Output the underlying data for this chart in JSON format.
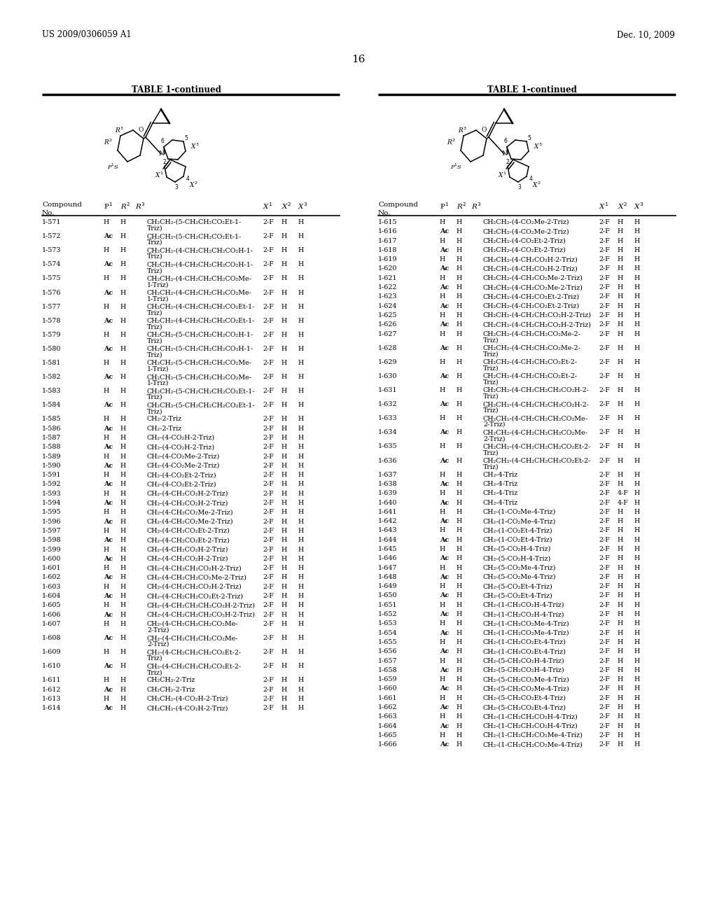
{
  "header_left": "US 2009/0306059 A1",
  "header_right": "Dec. 10, 2009",
  "page_number": "16",
  "table_title": "TABLE 1-continued",
  "left_rows": [
    [
      "1-571",
      "H",
      "H",
      "CH2CH2-(5-CH2CH2CO2Et-1-\nTriz)",
      "2-F",
      "H",
      "H"
    ],
    [
      "1-572",
      "Ac",
      "H",
      "CH2CH2-(5-CH2CH2CO2Et-1-\nTriz)",
      "2-F",
      "H",
      "H"
    ],
    [
      "1-573",
      "H",
      "H",
      "CH2CH2-(4-CH2CH2CH2CO2H-1-\nTriz)",
      "2-F",
      "H",
      "H"
    ],
    [
      "1-574",
      "Ac",
      "H",
      "CH2CH2-(4-CH2CH2CH2CO2H-1-\nTriz)",
      "2-F",
      "H",
      "H"
    ],
    [
      "1-575",
      "H",
      "H",
      "CH2CH2-(4-CH2CH2CH2CO2Me-\n1-Triz)",
      "2-F",
      "H",
      "H"
    ],
    [
      "1-576",
      "Ac",
      "H",
      "CH2CH2-(4-CH2CH2CH2CO2Me-\n1-Triz)",
      "2-F",
      "H",
      "H"
    ],
    [
      "1-577",
      "H",
      "H",
      "CH2CH2-(4-CH2CH2CH2CO2Et-1-\nTriz)",
      "2-F",
      "H",
      "H"
    ],
    [
      "1-578",
      "Ac",
      "H",
      "CH2CH2-(4-CH2CH2CH2CO2Et-1-\nTriz)",
      "2-F",
      "H",
      "H"
    ],
    [
      "1-579",
      "H",
      "H",
      "CH2CH2-(5-CH2CH2CH2CO2H-1-\nTriz)",
      "2-F",
      "H",
      "H"
    ],
    [
      "1-580",
      "Ac",
      "H",
      "CH2CH2-(5-CH2CH2CH2CO2H-1-\nTriz)",
      "2-F",
      "H",
      "H"
    ],
    [
      "1-581",
      "H",
      "H",
      "CH2CH2-(5-CH2CH2CH2CO2Me-\n1-Triz)",
      "2-F",
      "H",
      "H"
    ],
    [
      "1-582",
      "Ac",
      "H",
      "CH2CH2-(5-CH2CH2CH2CO2Me-\n1-Triz)",
      "2-F",
      "H",
      "H"
    ],
    [
      "1-583",
      "H",
      "H",
      "CH2CH2-(5-CH2CH2CH2CO2Et-1-\nTriz)",
      "2-F",
      "H",
      "H"
    ],
    [
      "1-584",
      "Ac",
      "H",
      "CH2CH2-(5-CH2CH2CH2CO2Et-1-\nTriz)",
      "2-F",
      "H",
      "H"
    ],
    [
      "1-585",
      "H",
      "H",
      "CH2-2-Triz",
      "2-F",
      "H",
      "H"
    ],
    [
      "1-586",
      "Ac",
      "H",
      "CH2-2-Triz",
      "2-F",
      "H",
      "H"
    ],
    [
      "1-587",
      "H",
      "H",
      "CH2-(4-CO2H-2-Triz)",
      "2-F",
      "H",
      "H"
    ],
    [
      "1-588",
      "Ac",
      "H",
      "CH2-(4-CO2H-2-Triz)",
      "2-F",
      "H",
      "H"
    ],
    [
      "1-589",
      "H",
      "H",
      "CH2-(4-CO2Me-2-Triz)",
      "2-F",
      "H",
      "H"
    ],
    [
      "1-590",
      "Ac",
      "H",
      "CH2-(4-CO2Me-2-Triz)",
      "2-F",
      "H",
      "H"
    ],
    [
      "1-591",
      "H",
      "H",
      "CH2-(4-CO2Et-2-Triz)",
      "2-F",
      "H",
      "H"
    ],
    [
      "1-592",
      "Ac",
      "H",
      "CH2-(4-CO2Et-2-Triz)",
      "2-F",
      "H",
      "H"
    ],
    [
      "1-593",
      "H",
      "H",
      "CH2-(4-CH2CO2H-2-Triz)",
      "2-F",
      "H",
      "H"
    ],
    [
      "1-594",
      "Ac",
      "H",
      "CH2-(4-CH2CO2H-2-Triz)",
      "2-F",
      "H",
      "H"
    ],
    [
      "1-595",
      "H",
      "H",
      "CH2-(4-CH2CO2Me-2-Triz)",
      "2-F",
      "H",
      "H"
    ],
    [
      "1-596",
      "Ac",
      "H",
      "CH2-(4-CH2CO2Me-2-Triz)",
      "2-F",
      "H",
      "H"
    ],
    [
      "1-597",
      "H",
      "H",
      "CH2-(4-CH2CO2Et-2-Triz)",
      "2-F",
      "H",
      "H"
    ],
    [
      "1-598",
      "Ac",
      "H",
      "CH2-(4-CH2CO2Et-2-Triz)",
      "2-F",
      "H",
      "H"
    ],
    [
      "1-599",
      "H",
      "H",
      "CH2-(4-CH2CO2H-2-Triz)",
      "2-F",
      "H",
      "H"
    ],
    [
      "1-600",
      "Ac",
      "H",
      "CH2-(4-CH2CO2H-2-Triz)",
      "2-F",
      "H",
      "H"
    ],
    [
      "1-601",
      "H",
      "H",
      "CH2-(4-CH2CH2CO2H-2-Triz)",
      "2-F",
      "H",
      "H"
    ],
    [
      "1-602",
      "Ac",
      "H",
      "CH2-(4-CH2CH2CO2Me-2-Triz)",
      "2-F",
      "H",
      "H"
    ],
    [
      "1-603",
      "H",
      "H",
      "CH2-(4-CH2CH2CO2H-2-Triz)",
      "2-F",
      "H",
      "H"
    ],
    [
      "1-604",
      "Ac",
      "H",
      "CH2-(4-CH2CH2CO2Et-2-Triz)",
      "2-F",
      "H",
      "H"
    ],
    [
      "1-605",
      "H",
      "H",
      "CH2-(4-CH2CH2CH2CO2H-2-Triz)",
      "2-F",
      "H",
      "H"
    ],
    [
      "1-606",
      "Ac",
      "H",
      "CH2-(4-CH2CH2CH2CO2H-2-Triz)",
      "2-F",
      "H",
      "H"
    ],
    [
      "1-607",
      "H",
      "H",
      "CH2-(4-CH2CH2CH2CO2Me-\n2-Triz)",
      "2-F",
      "H",
      "H"
    ],
    [
      "1-608",
      "Ac",
      "H",
      "CH2-(4-CH2CH2CH2CO2Me-\n2-Triz)",
      "2-F",
      "H",
      "H"
    ],
    [
      "1-609",
      "H",
      "H",
      "CH2-(4-CH2CH2CH2CO2Et-2-\nTriz)",
      "2-F",
      "H",
      "H"
    ],
    [
      "1-610",
      "Ac",
      "H",
      "CH2-(4-CH2CH2CH2CO2Et-2-\nTriz)",
      "2-F",
      "H",
      "H"
    ],
    [
      "1-611",
      "H",
      "H",
      "CH2CH2-2-Triz",
      "2-F",
      "H",
      "H"
    ],
    [
      "1-612",
      "Ac",
      "H",
      "CH2CH2-2-Triz",
      "2-F",
      "H",
      "H"
    ],
    [
      "1-613",
      "H",
      "H",
      "CH2CH2-(4-CO2H-2-Triz)",
      "2-F",
      "H",
      "H"
    ],
    [
      "1-614",
      "Ac",
      "H",
      "CH2CH2-(4-CO2H-2-Triz)",
      "2-F",
      "H",
      "H"
    ]
  ],
  "right_rows": [
    [
      "1-615",
      "H",
      "H",
      "CH2CH2-(4-CO2Me-2-Triz)",
      "2-F",
      "H",
      "H"
    ],
    [
      "1-616",
      "Ac",
      "H",
      "CH2CH2-(4-CO2Me-2-Triz)",
      "2-F",
      "H",
      "H"
    ],
    [
      "1-617",
      "H",
      "H",
      "CH2CH2-(4-CO2Et-2-Triz)",
      "2-F",
      "H",
      "H"
    ],
    [
      "1-618",
      "Ac",
      "H",
      "CH2CH2-(4-CO2Et-2-Triz)",
      "2-F",
      "H",
      "H"
    ],
    [
      "1-619",
      "H",
      "H",
      "CH2CH2-(4-CH2CO2H-2-Triz)",
      "2-F",
      "H",
      "H"
    ],
    [
      "1-620",
      "Ac",
      "H",
      "CH2CH2-(4-CH2CO2H-2-Triz)",
      "2-F",
      "H",
      "H"
    ],
    [
      "1-621",
      "H",
      "H",
      "CH2CH2-(4-CH2CO2Me-2-Triz)",
      "2-F",
      "H",
      "H"
    ],
    [
      "1-622",
      "Ac",
      "H",
      "CH2CH2-(4-CH2CO2Me-2-Triz)",
      "2-F",
      "H",
      "H"
    ],
    [
      "1-623",
      "H",
      "H",
      "CH2CH2-(4-CH2CO2Et-2-Triz)",
      "2-F",
      "H",
      "H"
    ],
    [
      "1-624",
      "Ac",
      "H",
      "CH2CH2-(4-CH2CO2Et-2-Triz)",
      "2-F",
      "H",
      "H"
    ],
    [
      "1-625",
      "H",
      "H",
      "CH2CH2-(4-CH2CH2CO2H-2-Triz)",
      "2-F",
      "H",
      "H"
    ],
    [
      "1-626",
      "Ac",
      "H",
      "CH2CH2-(4-CH2CH2CO2H-2-Triz)",
      "2-F",
      "H",
      "H"
    ],
    [
      "1-627",
      "H",
      "H",
      "CH2CH2-(4-CH2CH2CO2Me-2-\nTriz)",
      "2-F",
      "H",
      "H"
    ],
    [
      "1-628",
      "Ac",
      "H",
      "CH2CH2-(4-CH2CH2CO2Me-2-\nTriz)",
      "2-F",
      "H",
      "H"
    ],
    [
      "1-629",
      "H",
      "H",
      "CH2CH2-(4-CH2CH2CO2Et-2-\nTriz)",
      "2-F",
      "H",
      "H"
    ],
    [
      "1-630",
      "Ac",
      "H",
      "CH2CH2-(4-CH2CH2CO2Et-2-\nTriz)",
      "2-F",
      "H",
      "H"
    ],
    [
      "1-631",
      "H",
      "H",
      "CH2CH2-(4-CH2CH2CH2CO2H-2-\nTriz)",
      "2-F",
      "H",
      "H"
    ],
    [
      "1-632",
      "Ac",
      "H",
      "CH2CH2-(4-CH2CH2CH2CO2H-2-\nTriz)",
      "2-F",
      "H",
      "H"
    ],
    [
      "1-633",
      "H",
      "H",
      "CH2CH2-(4-CH2CH2CH2CO2Me-\n2-Triz)",
      "2-F",
      "H",
      "H"
    ],
    [
      "1-634",
      "Ac",
      "H",
      "CH2CH2-(4-CH2CH2CH2CO2Me-\n2-Triz)",
      "2-F",
      "H",
      "H"
    ],
    [
      "1-635",
      "H",
      "H",
      "CH2CH2-(4-CH2CH2CH2CO2Et-2-\nTriz)",
      "2-F",
      "H",
      "H"
    ],
    [
      "1-636",
      "Ac",
      "H",
      "CH2CH2-(4-CH2CH2CH2CO2Et-2-\nTriz)",
      "2-F",
      "H",
      "H"
    ],
    [
      "1-637",
      "H",
      "H",
      "CH2-4-Triz",
      "2-F",
      "H",
      "H"
    ],
    [
      "1-638",
      "Ac",
      "H",
      "CH2-4-Triz",
      "2-F",
      "H",
      "H"
    ],
    [
      "1-639",
      "H",
      "H",
      "CH2-4-Triz",
      "2-F",
      "4-F",
      "H"
    ],
    [
      "1-640",
      "Ac",
      "H",
      "CH2-4-Triz",
      "2-F",
      "4-F",
      "H"
    ],
    [
      "1-641",
      "H",
      "H",
      "CH2-(1-CO2Me-4-Triz)",
      "2-F",
      "H",
      "H"
    ],
    [
      "1-642",
      "Ac",
      "H",
      "CH2-(1-CO2Me-4-Triz)",
      "2-F",
      "H",
      "H"
    ],
    [
      "1-643",
      "H",
      "H",
      "CH2-(1-CO2Et-4-Triz)",
      "2-F",
      "H",
      "H"
    ],
    [
      "1-644",
      "Ac",
      "H",
      "CH2-(1-CO2Et-4-Triz)",
      "2-F",
      "H",
      "H"
    ],
    [
      "1-645",
      "H",
      "H",
      "CH2-(5-CO2H-4-Triz)",
      "2-F",
      "H",
      "H"
    ],
    [
      "1-646",
      "Ac",
      "H",
      "CH2-(5-CO2H-4-Triz)",
      "2-F",
      "H",
      "H"
    ],
    [
      "1-647",
      "H",
      "H",
      "CH2-(5-CO2Me-4-Triz)",
      "2-F",
      "H",
      "H"
    ],
    [
      "1-648",
      "Ac",
      "H",
      "CH2-(5-CO2Me-4-Triz)",
      "2-F",
      "H",
      "H"
    ],
    [
      "1-649",
      "H",
      "H",
      "CH2-(5-CO2Et-4-Triz)",
      "2-F",
      "H",
      "H"
    ],
    [
      "1-650",
      "Ac",
      "H",
      "CH2-(5-CO2Et-4-Triz)",
      "2-F",
      "H",
      "H"
    ],
    [
      "1-651",
      "H",
      "H",
      "CH2-(1-CH2CO2H-4-Triz)",
      "2-F",
      "H",
      "H"
    ],
    [
      "1-652",
      "Ac",
      "H",
      "CH2-(1-CH2CO2H-4-Triz)",
      "2-F",
      "H",
      "H"
    ],
    [
      "1-653",
      "H",
      "H",
      "CH2-(1-CH2CO2Me-4-Triz)",
      "2-F",
      "H",
      "H"
    ],
    [
      "1-654",
      "Ac",
      "H",
      "CH2-(1-CH2CO2Me-4-Triz)",
      "2-F",
      "H",
      "H"
    ],
    [
      "1-655",
      "H",
      "H",
      "CH2-(1-CH2CO2Et-4-Triz)",
      "2-F",
      "H",
      "H"
    ],
    [
      "1-656",
      "Ac",
      "H",
      "CH2-(1-CH2CO2Et-4-Triz)",
      "2-F",
      "H",
      "H"
    ],
    [
      "1-657",
      "H",
      "H",
      "CH2-(5-CH2CO2H-4-Triz)",
      "2-F",
      "H",
      "H"
    ],
    [
      "1-658",
      "Ac",
      "H",
      "CH2-(5-CH2CO2H-4-Triz)",
      "2-F",
      "H",
      "H"
    ],
    [
      "1-659",
      "H",
      "H",
      "CH2-(5-CH2CO2Me-4-Triz)",
      "2-F",
      "H",
      "H"
    ],
    [
      "1-660",
      "Ac",
      "H",
      "CH2-(5-CH2CO2Me-4-Triz)",
      "2-F",
      "H",
      "H"
    ],
    [
      "1-661",
      "H",
      "H",
      "CH2-(5-CH2CO2Et-4-Triz)",
      "2-F",
      "H",
      "H"
    ],
    [
      "1-662",
      "Ac",
      "H",
      "CH2-(5-CH2CO2Et-4-Triz)",
      "2-F",
      "H",
      "H"
    ],
    [
      "1-663",
      "H",
      "H",
      "CH2-(1-CH2CH2CO2H-4-Triz)",
      "2-F",
      "H",
      "H"
    ],
    [
      "1-664",
      "Ac",
      "H",
      "CH2-(1-CH2CH2CO2H-4-Triz)",
      "2-F",
      "H",
      "H"
    ],
    [
      "1-665",
      "H",
      "H",
      "CH2-(1-CH2CH2CO2Me-4-Triz)",
      "2-F",
      "H",
      "H"
    ],
    [
      "1-666",
      "Ac",
      "H",
      "CH2-(1-CH2CH2CO2Me-4-Triz)",
      "2-F",
      "H",
      "H"
    ]
  ]
}
